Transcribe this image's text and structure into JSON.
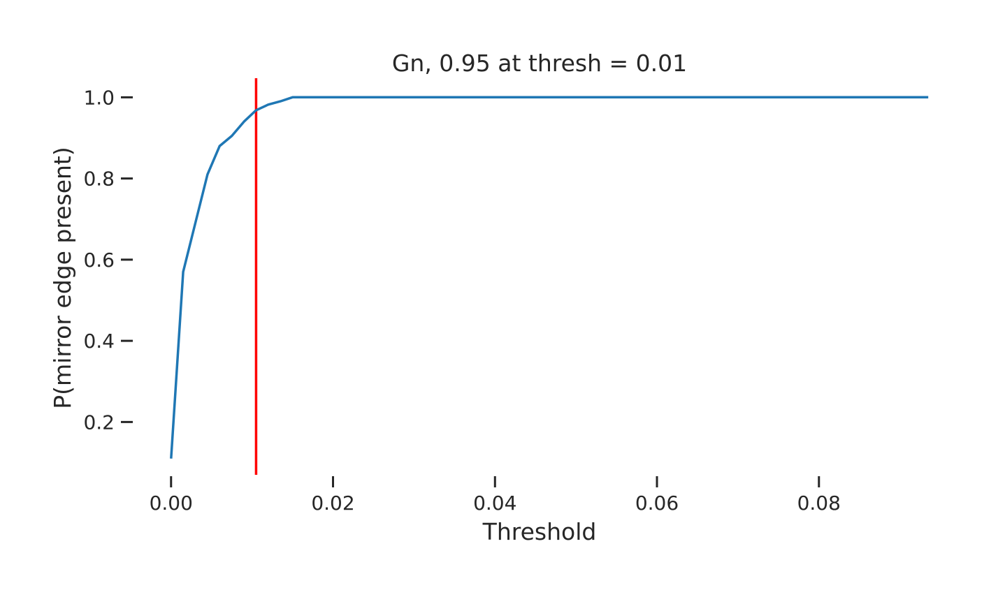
{
  "chart_data": {
    "type": "line",
    "title": "Gn, 0.95 at thresh = 0.01",
    "xlabel": "Threshold",
    "ylabel": "P(mirror edge present)",
    "xlim": [
      -0.003,
      0.094
    ],
    "ylim": [
      0.07,
      1.047
    ],
    "xticks": [
      0.0,
      0.02,
      0.04,
      0.06,
      0.08
    ],
    "xtick_labels": [
      "0.00",
      "0.02",
      "0.04",
      "0.06",
      "0.08"
    ],
    "yticks": [
      0.2,
      0.4,
      0.6,
      0.8,
      1.0
    ],
    "ytick_labels": [
      "0.2",
      "0.4",
      "0.6",
      "0.8",
      "1.0"
    ],
    "grid": false,
    "series": [
      {
        "color": "#1f77b4",
        "x": [
          0.0,
          0.0015,
          0.003,
          0.0045,
          0.006,
          0.0075,
          0.009,
          0.0105,
          0.012,
          0.0135,
          0.015,
          0.02,
          0.03,
          0.04,
          0.05,
          0.06,
          0.07,
          0.08,
          0.0935
        ],
        "y": [
          0.11,
          0.57,
          0.69,
          0.81,
          0.88,
          0.905,
          0.94,
          0.968,
          0.982,
          0.99,
          1.0,
          1.0,
          1.0,
          1.0,
          1.0,
          1.0,
          1.0,
          1.0,
          1.0
        ]
      }
    ],
    "vline": {
      "x": 0.0105,
      "color": "#ff0000"
    }
  }
}
